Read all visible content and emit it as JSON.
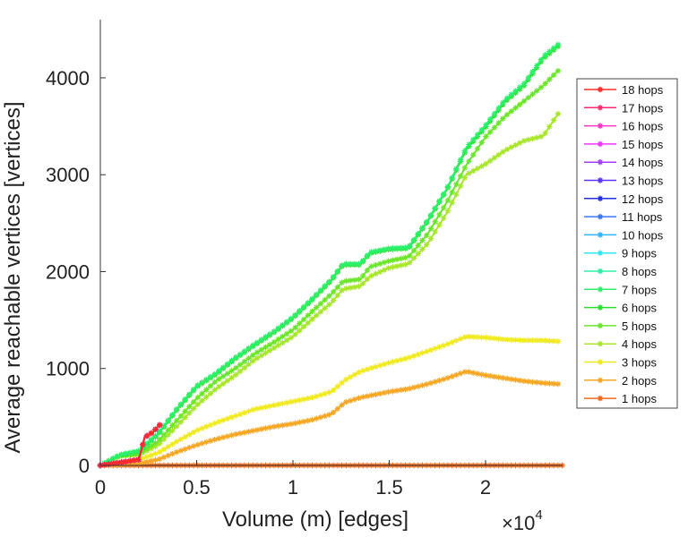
{
  "chart_data": {
    "type": "line",
    "title": "",
    "xlabel": "Volume (m) [edges]",
    "ylabel": "Average reachable vertices [vertices]",
    "x_scale_label": "×10",
    "x_scale_exponent": "4",
    "xlim": [
      0,
      24000
    ],
    "ylim": [
      0,
      4600
    ],
    "xticks": [
      0,
      5000,
      10000,
      15000,
      20000
    ],
    "xtick_labels": [
      "0",
      "0.5",
      "1",
      "1.5",
      "2"
    ],
    "yticks": [
      0,
      1000,
      2000,
      3000,
      4000
    ],
    "ytick_labels": [
      "0",
      "1000",
      "2000",
      "3000",
      "4000"
    ],
    "legend_position": "right",
    "series": [
      {
        "name": "18 hops",
        "color": "#ff2b2b",
        "x": [
          0,
          2000,
          2300,
          2700,
          3100
        ],
        "y": [
          0,
          60,
          290,
          340,
          420
        ]
      },
      {
        "name": "17 hops",
        "color": "#ff2b6e",
        "x": [
          0,
          2000,
          2300,
          2700,
          3100
        ],
        "y": [
          0,
          60,
          290,
          340,
          420
        ]
      },
      {
        "name": "16 hops",
        "color": "#ff35c8",
        "x": [
          0,
          2000,
          2300,
          2700,
          3100
        ],
        "y": [
          0,
          60,
          290,
          340,
          420
        ]
      },
      {
        "name": "15 hops",
        "color": "#f035ff",
        "x": [
          0,
          2000,
          2300,
          2700,
          3100
        ],
        "y": [
          0,
          60,
          290,
          340,
          420
        ]
      },
      {
        "name": "14 hops",
        "color": "#a13bff",
        "x": [
          0,
          2000,
          2300,
          2700,
          3100
        ],
        "y": [
          0,
          60,
          290,
          340,
          420
        ]
      },
      {
        "name": "13 hops",
        "color": "#5b35ff",
        "x": [
          0,
          2000,
          2300,
          2700,
          3100
        ],
        "y": [
          0,
          60,
          290,
          340,
          420
        ]
      },
      {
        "name": "12 hops",
        "color": "#2030e0",
        "x": [
          0,
          2000,
          2300,
          2700,
          3100
        ],
        "y": [
          0,
          60,
          290,
          340,
          420
        ]
      },
      {
        "name": "11 hops",
        "color": "#3a78ff",
        "x": [
          0,
          2000,
          2300,
          2700,
          3100
        ],
        "y": [
          0,
          60,
          290,
          340,
          420
        ]
      },
      {
        "name": "10 hops",
        "color": "#2fb5ff",
        "x": [
          0,
          2000,
          2300,
          2700,
          3100
        ],
        "y": [
          0,
          60,
          290,
          340,
          420
        ]
      },
      {
        "name": "9 hops",
        "color": "#31e8f0",
        "x": [
          0,
          2000,
          2300,
          2700,
          3100
        ],
        "y": [
          0,
          60,
          290,
          340,
          420
        ]
      },
      {
        "name": "8 hops",
        "color": "#2ef0a8",
        "x": [
          0,
          2000,
          2300,
          2700,
          3100
        ],
        "y": [
          0,
          60,
          290,
          340,
          420
        ]
      },
      {
        "name": "7 hops",
        "color": "#2cf06a",
        "x": [
          0,
          1000,
          2000,
          3000,
          4000,
          5000,
          6000,
          7000,
          8000,
          9000,
          10000,
          11000,
          12000,
          12600,
          13500,
          14000,
          15000,
          16000,
          17000,
          18000,
          19000,
          20000,
          21000,
          22000,
          23000,
          23800
        ],
        "y": [
          0,
          110,
          150,
          330,
          590,
          820,
          950,
          1110,
          1250,
          1380,
          1530,
          1720,
          1920,
          2080,
          2080,
          2200,
          2240,
          2250,
          2530,
          2860,
          3280,
          3510,
          3770,
          3940,
          4220,
          4350
        ]
      },
      {
        "name": "6 hops",
        "color": "#28e02a",
        "x": [
          0,
          1000,
          2000,
          3000,
          4000,
          5000,
          6000,
          7000,
          8000,
          9000,
          10000,
          11000,
          12000,
          12600,
          13500,
          14000,
          15000,
          16000,
          17000,
          18000,
          19000,
          20000,
          21000,
          22000,
          23000,
          23800
        ],
        "y": [
          0,
          105,
          145,
          320,
          580,
          810,
          940,
          1100,
          1240,
          1370,
          1520,
          1710,
          1910,
          2070,
          2070,
          2190,
          2230,
          2240,
          2520,
          2850,
          3260,
          3490,
          3750,
          3920,
          4200,
          4330
        ]
      },
      {
        "name": "5 hops",
        "color": "#6ae62a",
        "x": [
          0,
          1000,
          2000,
          3000,
          4000,
          5000,
          6000,
          7000,
          8000,
          9000,
          10000,
          11000,
          12000,
          12600,
          13500,
          14000,
          15000,
          16000,
          17000,
          18000,
          19000,
          20000,
          21000,
          22000,
          23000,
          23800
        ],
        "y": [
          0,
          100,
          120,
          250,
          470,
          690,
          870,
          1000,
          1150,
          1270,
          1400,
          1590,
          1770,
          1900,
          1920,
          2050,
          2110,
          2150,
          2390,
          2720,
          3100,
          3390,
          3600,
          3760,
          3920,
          4080
        ]
      },
      {
        "name": "4 hops",
        "color": "#a8e62a",
        "x": [
          0,
          1000,
          2000,
          3000,
          4000,
          5000,
          6000,
          7000,
          8000,
          9000,
          10000,
          11000,
          12000,
          12600,
          13500,
          14000,
          15000,
          16000,
          17000,
          18000,
          19000,
          20000,
          21000,
          22000,
          23000,
          23800
        ],
        "y": [
          0,
          95,
          110,
          210,
          410,
          620,
          790,
          930,
          1090,
          1210,
          1330,
          1510,
          1680,
          1820,
          1850,
          1950,
          2040,
          2080,
          2290,
          2610,
          3000,
          3110,
          3250,
          3350,
          3400,
          3640
        ]
      },
      {
        "name": "3 hops",
        "color": "#f0ea1e",
        "x": [
          0,
          2000,
          3000,
          4000,
          5000,
          6000,
          7000,
          8000,
          9000,
          10000,
          11000,
          12000,
          12700,
          13500,
          15000,
          16000,
          17000,
          18000,
          19000,
          20000,
          21000,
          22000,
          23000,
          23800
        ],
        "y": [
          0,
          60,
          130,
          250,
          360,
          440,
          510,
          580,
          620,
          660,
          700,
          760,
          880,
          970,
          1060,
          1110,
          1180,
          1250,
          1330,
          1320,
          1300,
          1290,
          1290,
          1280
        ]
      },
      {
        "name": "2 hops",
        "color": "#f5a623",
        "x": [
          0,
          2000,
          3000,
          4000,
          5000,
          6000,
          7000,
          8000,
          9000,
          10000,
          11000,
          12000,
          12700,
          13500,
          15000,
          16000,
          17000,
          18000,
          19000,
          20000,
          21000,
          22000,
          23000,
          23800
        ],
        "y": [
          0,
          20,
          60,
          140,
          210,
          270,
          320,
          360,
          400,
          430,
          470,
          530,
          650,
          700,
          760,
          790,
          840,
          900,
          970,
          930,
          900,
          870,
          850,
          840
        ]
      },
      {
        "name": "1 hops",
        "color": "#f26b1d",
        "x": [
          0,
          24000
        ],
        "y": [
          0,
          0
        ]
      }
    ]
  }
}
